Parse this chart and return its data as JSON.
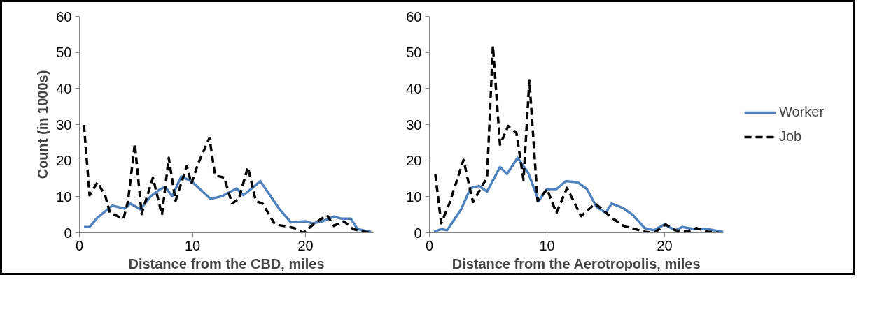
{
  "chart_data": [
    {
      "type": "line",
      "xlabel": "Distance from the CBD, miles",
      "ylabel": "Count (in 1000s)",
      "xlim": [
        0,
        26
      ],
      "xticks": [
        0,
        10,
        20
      ],
      "ylim": [
        0,
        60
      ],
      "yticks": [
        0,
        10,
        20,
        30,
        40,
        50,
        60
      ],
      "grid": false,
      "legend": false,
      "series": [
        {
          "color": "#4f81bd",
          "line_style": "solid",
          "x": [
            0.4,
            0.9,
            1.6,
            2.9,
            4.0,
            4.5,
            5.4,
            6.3,
            7.1,
            7.6,
            8.2,
            9.0,
            9.9,
            11.6,
            12.6,
            13.9,
            14.5,
            15.4,
            16.0,
            17.7,
            18.7,
            20.0,
            20.6,
            21.5,
            22.5,
            23.2,
            24.0,
            24.6,
            25.8
          ],
          "values": [
            1.6,
            1.6,
            4.2,
            7.5,
            6.7,
            8.1,
            6.5,
            10.1,
            12,
            12.7,
            10.1,
            15.6,
            14.3,
            9.4,
            10.1,
            12.3,
            10.4,
            12.7,
            14.3,
            6.5,
            2.9,
            3.2,
            2.6,
            3.2,
            4.5,
            3.9,
            3.9,
            1.0,
            0.2
          ]
        },
        {
          "color": "#000000",
          "line_style": "dashed",
          "x": [
            0.4,
            0.9,
            1.6,
            2.3,
            2.7,
            3.9,
            4.3,
            4.9,
            5.5,
            6.5,
            7.3,
            7.9,
            8.5,
            9.5,
            9.9,
            10.5,
            11.5,
            12.0,
            12.8,
            13.5,
            14.1,
            14.9,
            15.6,
            16.2,
            17.3,
            18.1,
            19.0,
            19.8,
            20.8,
            21.9,
            22.5,
            23.4,
            24.2,
            25.7
          ],
          "values": [
            29.9,
            10.4,
            14,
            10.1,
            5.5,
            3.9,
            8.8,
            24.7,
            5.2,
            15.3,
            4.9,
            20.8,
            8.8,
            18.5,
            13.6,
            19.2,
            26.3,
            15.9,
            15.3,
            8.1,
            9.4,
            18.2,
            8.8,
            8.1,
            2.3,
            1.9,
            1.3,
            0,
            2.6,
            4.9,
            1.9,
            3.2,
            1.0,
            0
          ]
        }
      ]
    },
    {
      "type": "line",
      "xlabel": "Distance from the Aerotropolis, miles",
      "xlim": [
        0,
        25
      ],
      "xticks": [
        0,
        10,
        20
      ],
      "ylim": [
        0,
        60
      ],
      "yticks": [
        0,
        10,
        20,
        30,
        40,
        50,
        60
      ],
      "grid": false,
      "legend": "right",
      "series": [
        {
          "name": "Worker",
          "color": "#4f81bd",
          "line_style": "solid",
          "x": [
            0.4,
            1.0,
            1.5,
            2.7,
            3.5,
            4.2,
            4.9,
            6.0,
            6.6,
            7.5,
            8.4,
            9.3,
            10.0,
            10.8,
            11.6,
            12.6,
            13.4,
            14.2,
            15.0,
            15.5,
            16.5,
            17.3,
            18.3,
            19.1,
            20.0,
            20.9,
            21.5,
            22.5,
            23.7,
            25.0
          ],
          "values": [
            0.3,
            1.0,
            0.7,
            6.5,
            12.4,
            13,
            11.4,
            18.2,
            16.3,
            20.8,
            16.6,
            8.8,
            12.1,
            12.1,
            14.3,
            14,
            12.1,
            7.2,
            5.5,
            8.1,
            6.8,
            4.9,
            1.3,
            0.7,
            2.3,
            0.7,
            1.6,
            1.0,
            1.0,
            0.2
          ]
        },
        {
          "name": "Job",
          "color": "#000000",
          "line_style": "dashed",
          "x": [
            0.5,
            1.0,
            1.7,
            2.9,
            3.7,
            4.9,
            5.4,
            6.0,
            6.7,
            7.4,
            8.0,
            8.5,
            9.2,
            10.0,
            10.8,
            11.7,
            12.9,
            14.1,
            15.5,
            16.5,
            18.3,
            19.1,
            20.1,
            20.9,
            21.9,
            22.7,
            23.7,
            24.6
          ],
          "values": [
            16.3,
            2.6,
            8.1,
            20.2,
            8.5,
            15.3,
            51.8,
            24.4,
            29.6,
            27.7,
            14.7,
            42.3,
            8.8,
            12.1,
            5.5,
            12.4,
            4.6,
            8.1,
            4.2,
            1.9,
            0.3,
            0,
            2.3,
            0.7,
            0.3,
            1.3,
            0.3,
            0
          ]
        }
      ]
    }
  ]
}
